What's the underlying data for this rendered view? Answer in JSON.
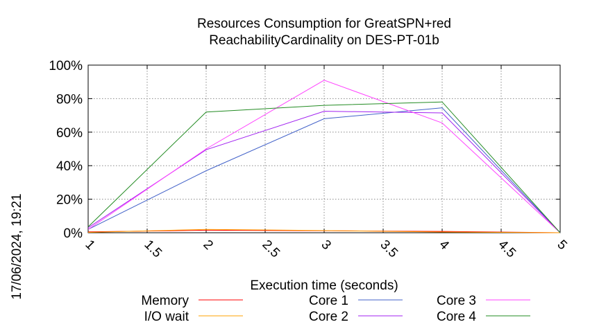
{
  "chart_data": {
    "type": "line",
    "title_lines": [
      "Resources Consumption for GreatSPN+red",
      "ReachabilityCardinality on DES-PT-01b"
    ],
    "xlabel": "Execution time (seconds)",
    "ylabel": "",
    "xlim": [
      1,
      5
    ],
    "ylim": [
      0,
      100
    ],
    "x_ticks": [
      "1",
      "1.5",
      "2",
      "2.5",
      "3",
      "3.5",
      "4",
      "4.5",
      "5"
    ],
    "y_ticks": [
      "0%",
      "20%",
      "40%",
      "60%",
      "80%",
      "100%"
    ],
    "grid": true,
    "legend_position": "bottom",
    "timestamp": "17/06/2024, 19:21",
    "series": [
      {
        "name": "Memory",
        "color": "#ff0000",
        "x": [
          1,
          2,
          3,
          4,
          5
        ],
        "values": [
          0.5,
          1.5,
          1.2,
          0.8,
          0
        ]
      },
      {
        "name": "I/O wait",
        "color": "#ffa000",
        "x": [
          1,
          2,
          3,
          4,
          5
        ],
        "values": [
          0.2,
          2.0,
          1.3,
          0.4,
          0
        ]
      },
      {
        "name": "Core 1",
        "color": "#4060c8",
        "x": [
          1,
          2,
          3,
          4,
          5
        ],
        "values": [
          2,
          37,
          68,
          74.5,
          0
        ]
      },
      {
        "name": "Core 2",
        "color": "#a020f0",
        "x": [
          1,
          2,
          3,
          4,
          5
        ],
        "values": [
          3,
          49.5,
          72.5,
          71.5,
          0
        ]
      },
      {
        "name": "Core 3",
        "color": "#ff40ff",
        "x": [
          1,
          2,
          3,
          4,
          5
        ],
        "values": [
          2,
          50,
          91,
          65.5,
          0
        ]
      },
      {
        "name": "Core 4",
        "color": "#228b22",
        "x": [
          1,
          2,
          3,
          4,
          5
        ],
        "values": [
          3.5,
          72,
          76,
          78,
          0
        ]
      }
    ]
  }
}
